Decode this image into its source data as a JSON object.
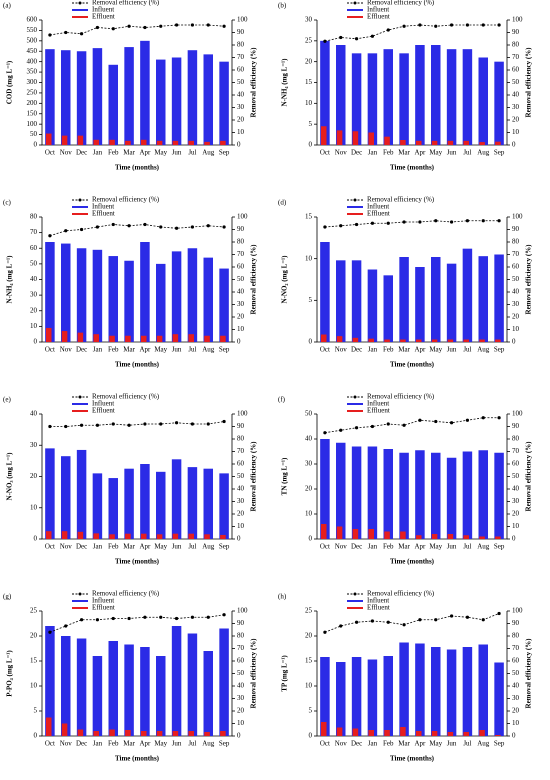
{
  "chart_data": [
    {
      "type": "bar",
      "label": "(a)",
      "xlabel": "Time (months)",
      "ylabel": "COD (mg L⁻¹)",
      "y2label": "Removal efficiency (%)",
      "categories": [
        "Oct",
        "Nov",
        "Dec",
        "Jan",
        "Feb",
        "Mar",
        "Apr",
        "May",
        "Jun",
        "Jul",
        "Aug",
        "Sep"
      ],
      "ylim": [
        0,
        600
      ],
      "yticks": [
        0,
        50,
        100,
        150,
        200,
        250,
        300,
        350,
        400,
        450,
        500,
        550,
        600
      ],
      "y2lim": [
        0,
        100
      ],
      "y2ticks": [
        0,
        10,
        20,
        30,
        40,
        50,
        60,
        70,
        80,
        90,
        100
      ],
      "series": [
        {
          "name": "Removal efficiency (%)",
          "type": "line",
          "axis": "y2",
          "color": "#000000",
          "values": [
            88,
            90,
            89,
            94,
            93,
            95,
            94,
            95,
            96,
            96,
            96,
            95
          ]
        },
        {
          "name": "Influent",
          "color": "#2b2be6",
          "values": [
            460,
            455,
            450,
            465,
            385,
            470,
            500,
            410,
            420,
            455,
            435,
            400
          ]
        },
        {
          "name": "Effluent",
          "color": "#e61e1e",
          "values": [
            55,
            45,
            45,
            25,
            25,
            20,
            25,
            20,
            20,
            20,
            15,
            20
          ]
        }
      ]
    },
    {
      "type": "bar",
      "label": "(b)",
      "xlabel": "Time (months)",
      "ylabel": "N-NH₄ (mg L⁻¹)",
      "y2label": "Removal efficiency (%)",
      "categories": [
        "Oct",
        "Nov",
        "Dec",
        "Jan",
        "Feb",
        "Mar",
        "Apr",
        "May",
        "Jun",
        "Jul",
        "Aug",
        "Sep"
      ],
      "ylim": [
        0,
        30
      ],
      "yticks": [
        0,
        5,
        10,
        15,
        20,
        25,
        30
      ],
      "y2lim": [
        0,
        100
      ],
      "y2ticks": [
        0,
        10,
        20,
        30,
        40,
        50,
        60,
        70,
        80,
        90,
        100
      ],
      "series": [
        {
          "name": "Removal efficiency (%)",
          "type": "line",
          "axis": "y2",
          "color": "#000000",
          "values": [
            83,
            86,
            85,
            87,
            92,
            95,
            96,
            95,
            96,
            96,
            96,
            96
          ]
        },
        {
          "name": "Influent",
          "color": "#2b2be6",
          "values": [
            25,
            24,
            22,
            22,
            23,
            22,
            24,
            24,
            23,
            23,
            21,
            20
          ]
        },
        {
          "name": "Effluent",
          "color": "#e61e1e",
          "values": [
            4.5,
            3.5,
            3.3,
            3,
            2,
            1.2,
            1,
            1,
            1,
            1,
            0.7,
            0.8
          ]
        }
      ]
    },
    {
      "type": "bar",
      "label": "(c)",
      "xlabel": "Time (months)",
      "ylabel": "N-NH₄ (mg L⁻¹)",
      "y2label": "Removal efficiency (%)",
      "categories": [
        "Oct",
        "Nov",
        "Dec",
        "Jan",
        "Feb",
        "Mar",
        "Apr",
        "May",
        "Jun",
        "Jul",
        "Aug",
        "Sep"
      ],
      "ylim": [
        0,
        80
      ],
      "yticks": [
        0,
        10,
        20,
        30,
        40,
        50,
        60,
        70,
        80
      ],
      "y2lim": [
        0,
        100
      ],
      "y2ticks": [
        0,
        10,
        20,
        30,
        40,
        50,
        60,
        70,
        80,
        90,
        100
      ],
      "series": [
        {
          "name": "Removal efficiency (%)",
          "type": "line",
          "axis": "y2",
          "color": "#000000",
          "values": [
            85,
            89,
            90,
            92,
            94,
            93,
            94,
            92,
            91,
            92,
            93,
            92
          ]
        },
        {
          "name": "Influent",
          "color": "#2b2be6",
          "values": [
            64,
            63,
            60,
            59,
            55,
            52,
            64,
            50,
            58,
            60,
            54,
            47
          ]
        },
        {
          "name": "Effluent",
          "color": "#e61e1e",
          "values": [
            9,
            7,
            6,
            5,
            4,
            4,
            4,
            4,
            5,
            5,
            4,
            4
          ]
        }
      ]
    },
    {
      "type": "bar",
      "label": "(d)",
      "xlabel": "Time (months)",
      "ylabel": "N-NO₂ (mg L⁻¹)",
      "y2label": "Removal efficiency (%)",
      "categories": [
        "Oct",
        "Nov",
        "Dec",
        "Jan",
        "Feb",
        "Mar",
        "Apr",
        "May",
        "Jun",
        "Jul",
        "Aug",
        "Sep"
      ],
      "ylim": [
        0,
        15
      ],
      "yticks": [
        0,
        5,
        10,
        15
      ],
      "y2lim": [
        0,
        100
      ],
      "y2ticks": [
        0,
        10,
        20,
        30,
        40,
        50,
        60,
        70,
        80,
        90,
        100
      ],
      "series": [
        {
          "name": "Removal efficiency (%)",
          "type": "line",
          "axis": "y2",
          "color": "#000000",
          "values": [
            92,
            93,
            94,
            95,
            95,
            96,
            96,
            97,
            96,
            97,
            97,
            97
          ]
        },
        {
          "name": "Influent",
          "color": "#2b2be6",
          "values": [
            12,
            9.8,
            9.8,
            8.7,
            8,
            10.2,
            9,
            10.2,
            9.4,
            11.2,
            10.3,
            10.5
          ]
        },
        {
          "name": "Effluent",
          "color": "#e61e1e",
          "values": [
            0.9,
            0.7,
            0.5,
            0.4,
            0.3,
            0.3,
            0.3,
            0.3,
            0.3,
            0.3,
            0.3,
            0.3
          ]
        }
      ]
    },
    {
      "type": "bar",
      "label": "(e)",
      "xlabel": "Time (months)",
      "ylabel": "N-NO₃ (mg L⁻¹)",
      "y2label": "Removal efficiency (%)",
      "categories": [
        "Oct",
        "Nov",
        "Dec",
        "Jan",
        "Feb",
        "Mar",
        "Apr",
        "May",
        "Jun",
        "Jul",
        "Aug",
        "Sep"
      ],
      "ylim": [
        0,
        40
      ],
      "yticks": [
        0,
        10,
        20,
        30,
        40
      ],
      "y2lim": [
        0,
        100
      ],
      "y2ticks": [
        0,
        10,
        20,
        30,
        40,
        50,
        60,
        70,
        80,
        90,
        100
      ],
      "series": [
        {
          "name": "Removal efficiency (%)",
          "type": "line",
          "axis": "y2",
          "color": "#000000",
          "values": [
            90,
            90,
            91,
            91,
            92,
            91,
            92,
            92,
            93,
            92,
            92,
            94
          ]
        },
        {
          "name": "Influent",
          "color": "#2b2be6",
          "values": [
            29,
            26.5,
            28.5,
            21,
            19.5,
            22.5,
            24,
            21.5,
            25.5,
            23,
            22.5,
            21
          ]
        },
        {
          "name": "Effluent",
          "color": "#e61e1e",
          "values": [
            2.5,
            2.5,
            2.3,
            1.8,
            1.5,
            1.7,
            1.7,
            1.5,
            1.7,
            1.7,
            1.5,
            1.3
          ]
        }
      ]
    },
    {
      "type": "bar",
      "label": "(f)",
      "xlabel": "Time (months)",
      "ylabel": "TN (mg L⁻¹)",
      "y2label": "Removal efficiency (%)",
      "categories": [
        "Oct",
        "Nov",
        "Dec",
        "Jan",
        "Feb",
        "Mar",
        "Apr",
        "May",
        "Jun",
        "Jul",
        "Aug",
        "Sep"
      ],
      "ylim": [
        0,
        50
      ],
      "yticks": [
        0,
        10,
        20,
        30,
        40,
        50
      ],
      "y2lim": [
        0,
        100
      ],
      "y2ticks": [
        0,
        10,
        20,
        30,
        40,
        50,
        60,
        70,
        80,
        90,
        100
      ],
      "series": [
        {
          "name": "Removal efficiency (%)",
          "type": "line",
          "axis": "y2",
          "color": "#000000",
          "values": [
            85,
            87,
            89,
            90,
            92,
            91,
            95,
            94,
            93,
            95,
            97,
            97
          ]
        },
        {
          "name": "Influent",
          "color": "#2b2be6",
          "values": [
            40,
            38.5,
            37,
            37,
            36,
            34.5,
            35.5,
            34.5,
            32.5,
            35,
            35.5,
            34.5
          ]
        },
        {
          "name": "Effluent",
          "color": "#e61e1e",
          "values": [
            6,
            5,
            4,
            4,
            3,
            3,
            1.5,
            2,
            2,
            1.5,
            1,
            1
          ]
        }
      ]
    },
    {
      "type": "bar",
      "label": "(g)",
      "xlabel": "Time (months)",
      "ylabel": "P-PO₄ (mg L⁻¹)",
      "y2label": "Removal efficiency (%)",
      "categories": [
        "Oct",
        "Nov",
        "Dec",
        "Jan",
        "Feb",
        "Mar",
        "Apr",
        "May",
        "Jun",
        "Jul",
        "Aug",
        "Sep"
      ],
      "ylim": [
        0,
        25
      ],
      "yticks": [
        0,
        5,
        10,
        15,
        20,
        25
      ],
      "y2lim": [
        0,
        100
      ],
      "y2ticks": [
        0,
        10,
        20,
        30,
        40,
        50,
        60,
        70,
        80,
        90,
        100
      ],
      "series": [
        {
          "name": "Removal efficiency (%)",
          "type": "line",
          "axis": "y2",
          "color": "#000000",
          "values": [
            83,
            88,
            93,
            93,
            94,
            94,
            95,
            95,
            94,
            95,
            95,
            97
          ]
        },
        {
          "name": "Influent",
          "color": "#2b2be6",
          "values": [
            22,
            20,
            19.5,
            16,
            19,
            18.3,
            17.8,
            16,
            22,
            20.5,
            17,
            21.5
          ]
        },
        {
          "name": "Effluent",
          "color": "#e61e1e",
          "values": [
            3.7,
            2.5,
            1.3,
            1,
            1.3,
            1.2,
            1,
            1,
            1,
            1,
            0.8,
            1
          ]
        }
      ]
    },
    {
      "type": "bar",
      "label": "(h)",
      "xlabel": "Time (months)",
      "ylabel": "TP (mg L⁻¹)",
      "y2label": "Removal efficiency (%)",
      "categories": [
        "Oct",
        "Nov",
        "Dec",
        "Jan",
        "Feb",
        "Mar",
        "Apr",
        "May",
        "Jun",
        "Jul",
        "Aug",
        "Sep"
      ],
      "ylim": [
        0,
        25
      ],
      "yticks": [
        0,
        5,
        10,
        15,
        20,
        25
      ],
      "y2lim": [
        0,
        100
      ],
      "y2ticks": [
        0,
        10,
        20,
        30,
        40,
        50,
        60,
        70,
        80,
        90,
        100
      ],
      "series": [
        {
          "name": "Removal efficiency (%)",
          "type": "line",
          "axis": "y2",
          "color": "#000000",
          "values": [
            83,
            88,
            91,
            92,
            91,
            89,
            93,
            93,
            96,
            95,
            93,
            98
          ]
        },
        {
          "name": "Influent",
          "color": "#2b2be6",
          "values": [
            15.8,
            14.8,
            15.8,
            15.3,
            16,
            18.7,
            18.5,
            17.8,
            17.3,
            17.8,
            18.3,
            14.7
          ]
        },
        {
          "name": "Effluent",
          "color": "#e61e1e",
          "values": [
            2.8,
            1.7,
            1.5,
            1.2,
            1.2,
            1.8,
            1,
            1,
            0.8,
            0.8,
            1.2,
            0.2
          ]
        }
      ]
    }
  ]
}
